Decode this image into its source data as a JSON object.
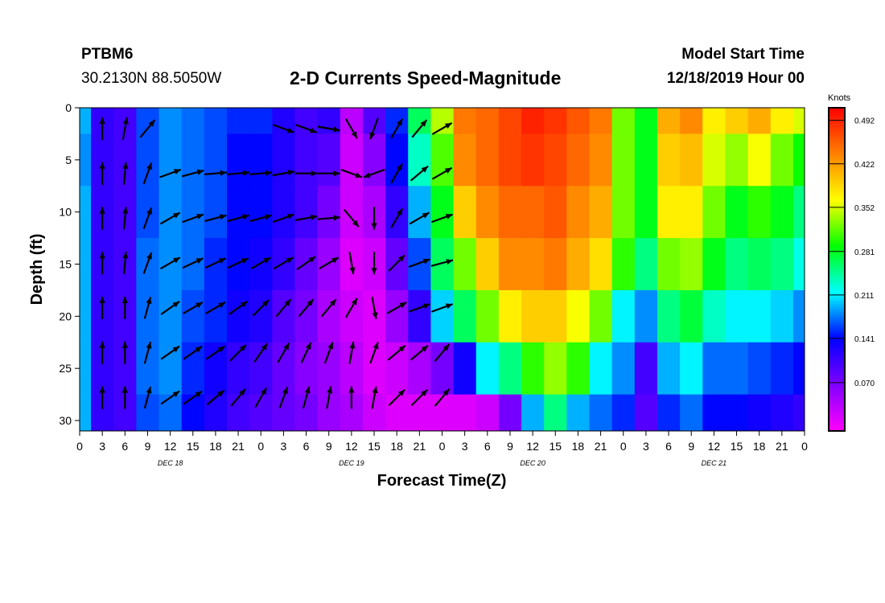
{
  "header": {
    "station": "PTBM6",
    "coords": "30.2130N 88.5050W",
    "title": "2-D Currents Speed-Magnitude",
    "model_start_label": "Model Start Time",
    "model_start_value": "12/18/2019 Hour 00"
  },
  "chart_data": {
    "type": "heatmap",
    "title": "2-D Currents Speed-Magnitude",
    "xlabel": "Forecast Time(Z)",
    "ylabel": "Depth (ft)",
    "xlim": [
      0,
      96
    ],
    "ylim": [
      31,
      0
    ],
    "x_tick_values": [
      0,
      3,
      6,
      9,
      12,
      15,
      18,
      21,
      24,
      27,
      30,
      33,
      36,
      39,
      42,
      45,
      48,
      51,
      54,
      57,
      60,
      63,
      66,
      69,
      72,
      75,
      78,
      81,
      84,
      87,
      90,
      93,
      96
    ],
    "x_tick_labels": [
      "0",
      "3",
      "6",
      "9",
      "12",
      "15",
      "18",
      "21",
      "0",
      "3",
      "6",
      "9",
      "12",
      "15",
      "18",
      "21",
      "0",
      "3",
      "6",
      "9",
      "12",
      "15",
      "18",
      "21",
      "0",
      "3",
      "6",
      "9",
      "12",
      "15",
      "18",
      "21",
      "0"
    ],
    "date_labels": [
      {
        "x": 12,
        "label": "DEC 18"
      },
      {
        "x": 36,
        "label": "DEC 19"
      },
      {
        "x": 60,
        "label": "DEC 20"
      },
      {
        "x": 84,
        "label": "DEC 21"
      }
    ],
    "y_ticks": [
      0,
      5,
      10,
      15,
      20,
      25,
      30
    ],
    "colorbar": {
      "unit": "Knots",
      "min": 0.0,
      "max": 0.52,
      "tick_values": [
        0.492,
        0.422,
        0.352,
        0.281,
        0.211,
        0.141,
        0.07
      ],
      "tick_labels": [
        "0.492",
        "0.422",
        "0.352",
        "0.281",
        "0.211",
        "0.141",
        "0.070"
      ],
      "colors": [
        "#ff00ff",
        "#8000ff",
        "#0000ff",
        "#00ffff",
        "#00ff00",
        "#ffff00",
        "#ff8000",
        "#ff0000"
      ]
    },
    "speed_field": {
      "times": [
        0,
        3,
        6,
        9,
        12,
        15,
        18,
        21,
        24,
        27,
        30,
        33,
        36,
        39,
        42,
        45,
        48,
        51,
        54,
        57,
        60,
        63,
        66,
        69,
        72,
        75,
        78,
        81,
        84,
        87,
        90,
        93,
        96
      ],
      "depths": [
        0,
        5,
        10,
        15,
        20,
        25,
        30
      ],
      "speed_knots": [
        [
          0.2,
          0.12,
          0.11,
          0.17,
          0.19,
          0.18,
          0.17,
          0.16,
          0.16,
          0.13,
          0.11,
          0.12,
          0.04,
          0.1,
          0.16,
          0.27,
          0.35,
          0.45,
          0.46,
          0.48,
          0.5,
          0.49,
          0.47,
          0.45,
          0.33,
          0.29,
          0.42,
          0.44,
          0.38,
          0.4,
          0.42,
          0.38,
          0.36
        ],
        [
          0.19,
          0.12,
          0.11,
          0.17,
          0.19,
          0.18,
          0.17,
          0.15,
          0.15,
          0.13,
          0.11,
          0.1,
          0.03,
          0.07,
          0.15,
          0.24,
          0.32,
          0.44,
          0.46,
          0.48,
          0.49,
          0.48,
          0.46,
          0.44,
          0.33,
          0.29,
          0.4,
          0.41,
          0.36,
          0.34,
          0.37,
          0.33,
          0.3
        ],
        [
          0.2,
          0.12,
          0.11,
          0.17,
          0.19,
          0.18,
          0.17,
          0.15,
          0.15,
          0.13,
          0.11,
          0.08,
          0.03,
          0.05,
          0.12,
          0.2,
          0.29,
          0.4,
          0.44,
          0.46,
          0.46,
          0.47,
          0.44,
          0.42,
          0.33,
          0.29,
          0.38,
          0.38,
          0.33,
          0.29,
          0.31,
          0.29,
          0.26
        ],
        [
          0.2,
          0.12,
          0.11,
          0.18,
          0.19,
          0.18,
          0.16,
          0.15,
          0.14,
          0.12,
          0.09,
          0.06,
          0.02,
          0.03,
          0.09,
          0.17,
          0.27,
          0.33,
          0.4,
          0.44,
          0.44,
          0.45,
          0.42,
          0.39,
          0.31,
          0.26,
          0.33,
          0.34,
          0.29,
          0.26,
          0.27,
          0.26,
          0.23
        ],
        [
          0.2,
          0.12,
          0.11,
          0.18,
          0.19,
          0.17,
          0.16,
          0.14,
          0.13,
          0.1,
          0.08,
          0.05,
          0.03,
          0.02,
          0.06,
          0.12,
          0.21,
          0.27,
          0.33,
          0.38,
          0.4,
          0.4,
          0.37,
          0.33,
          0.22,
          0.19,
          0.26,
          0.28,
          0.24,
          0.22,
          0.22,
          0.21,
          0.19
        ],
        [
          0.2,
          0.12,
          0.11,
          0.18,
          0.19,
          0.16,
          0.14,
          0.12,
          0.11,
          0.09,
          0.07,
          0.06,
          0.04,
          0.02,
          0.03,
          0.05,
          0.08,
          0.14,
          0.22,
          0.26,
          0.31,
          0.34,
          0.31,
          0.22,
          0.19,
          0.11,
          0.2,
          0.22,
          0.18,
          0.18,
          0.17,
          0.16,
          0.15
        ],
        [
          0.2,
          0.12,
          0.11,
          0.17,
          0.18,
          0.15,
          0.13,
          0.11,
          0.1,
          0.09,
          0.08,
          0.06,
          0.05,
          0.03,
          0.02,
          0.02,
          0.02,
          0.02,
          0.03,
          0.08,
          0.2,
          0.26,
          0.2,
          0.18,
          0.16,
          0.1,
          0.16,
          0.18,
          0.15,
          0.15,
          0.14,
          0.13,
          0.12
        ]
      ]
    },
    "vectors": {
      "description_units": "direction in degrees (0 = up/north, clockwise), length relative 0-1",
      "columns": [
        {
          "t": 3,
          "dir": [
            0,
            0,
            0,
            0,
            0,
            0,
            0
          ]
        },
        {
          "t": 6,
          "dir": [
            10,
            5,
            5,
            5,
            0,
            0,
            0
          ]
        },
        {
          "t": 9,
          "dir": [
            40,
            20,
            20,
            20,
            15,
            15,
            15
          ]
        },
        {
          "t": 12,
          "dir": [
            null,
            70,
            60,
            60,
            55,
            55,
            55
          ]
        },
        {
          "t": 15,
          "dir": [
            null,
            75,
            70,
            65,
            60,
            55,
            55
          ]
        },
        {
          "t": 18,
          "dir": [
            null,
            85,
            75,
            65,
            60,
            55,
            50
          ]
        },
        {
          "t": 21,
          "dir": [
            null,
            85,
            75,
            65,
            55,
            45,
            40
          ]
        },
        {
          "t": 24,
          "dir": [
            null,
            85,
            75,
            60,
            45,
            35,
            30
          ]
        },
        {
          "t": 27,
          "dir": [
            110,
            80,
            70,
            60,
            40,
            30,
            20
          ]
        },
        {
          "t": 30,
          "dir": [
            110,
            90,
            80,
            55,
            40,
            25,
            15
          ]
        },
        {
          "t": 33,
          "dir": [
            100,
            90,
            85,
            60,
            40,
            20,
            10
          ]
        },
        {
          "t": 36,
          "dir": [
            150,
            110,
            140,
            170,
            30,
            10,
            0
          ]
        },
        {
          "t": 39,
          "dir": [
            200,
            250,
            180,
            180,
            170,
            20,
            10
          ]
        },
        {
          "t": 42,
          "dir": [
            30,
            30,
            30,
            45,
            60,
            50,
            45
          ]
        },
        {
          "t": 45,
          "dir": [
            40,
            50,
            60,
            70,
            70,
            50,
            45
          ]
        },
        {
          "t": 48,
          "dir": [
            60,
            60,
            70,
            75,
            70,
            40,
            40
          ]
        }
      ]
    }
  }
}
